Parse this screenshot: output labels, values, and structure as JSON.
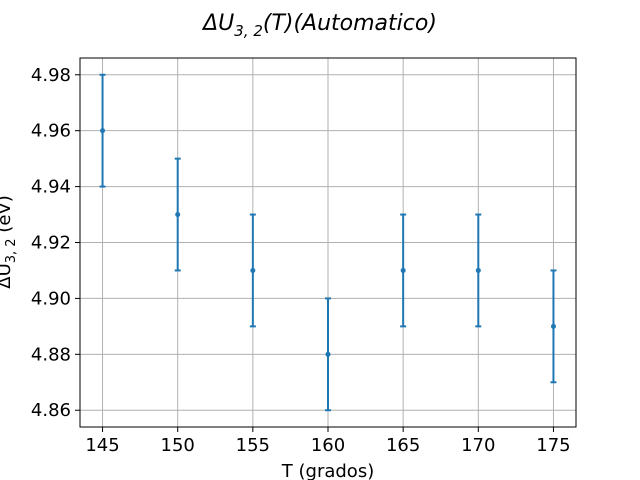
{
  "chart_data": {
    "type": "scatter",
    "title": "ΔU3, 2(T)(Automatico)",
    "title_main": "ΔU",
    "title_sub": "3, 2",
    "title_rest": "(T)(Automatico)",
    "xlabel": "T (grados)",
    "ylabel": "ΔU3, 2 (eV)",
    "ylabel_main": "ΔU",
    "ylabel_sub": "3, 2",
    "ylabel_rest": " (eV)",
    "x": [
      145,
      150,
      155,
      160,
      165,
      170,
      175
    ],
    "y": [
      4.96,
      4.93,
      4.91,
      4.88,
      4.91,
      4.91,
      4.89
    ],
    "yerr": [
      0.02,
      0.02,
      0.02,
      0.02,
      0.02,
      0.02,
      0.02
    ],
    "xlim": [
      143.5,
      176.5
    ],
    "ylim": [
      4.854,
      4.986
    ],
    "xticks": [
      "145",
      "150",
      "155",
      "160",
      "165",
      "170",
      "175"
    ],
    "yticks": [
      "4.86",
      "4.88",
      "4.90",
      "4.92",
      "4.94",
      "4.96",
      "4.98"
    ],
    "grid": true,
    "color": "#1f77b4"
  }
}
